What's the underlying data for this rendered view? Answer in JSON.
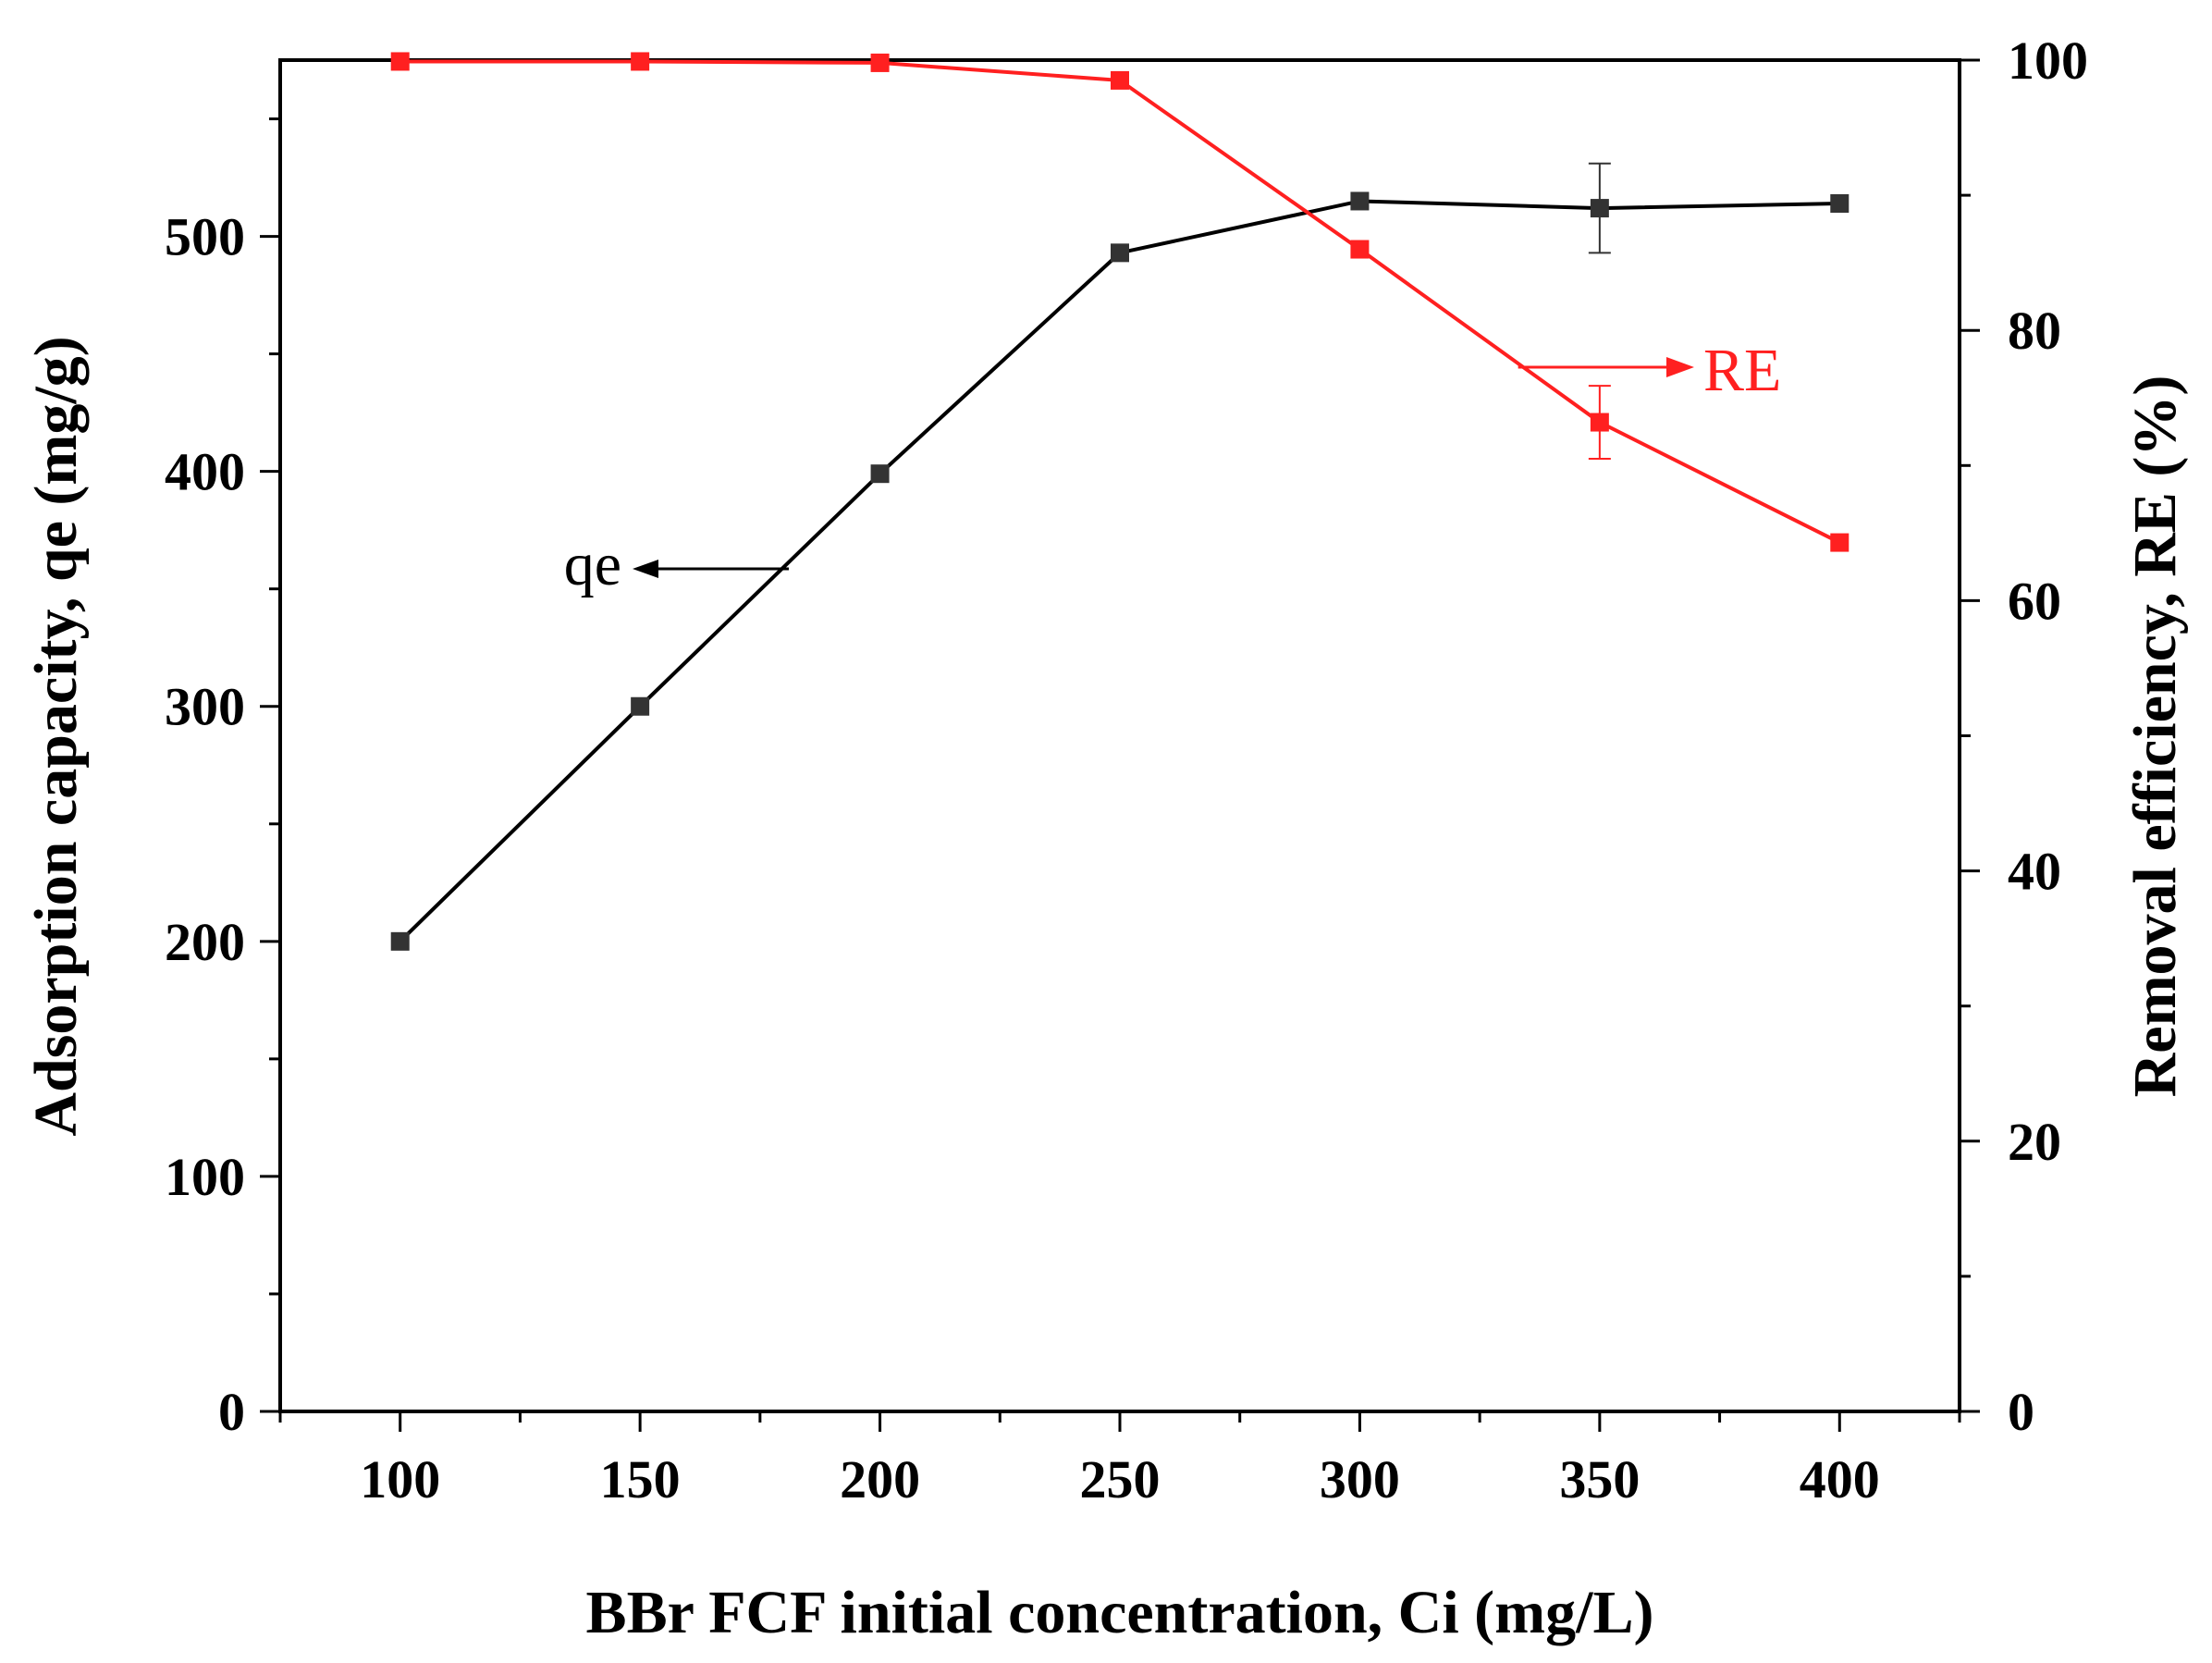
{
  "chart_data": {
    "type": "line",
    "xlabel": "BBr FCF initial concentration, Ci (mg/L)",
    "ylabel_left": "Adsorption capacity, qe (mg/g)",
    "ylabel_right": "Removal efficiency, RE (%)",
    "xlim": [
      75,
      425
    ],
    "ylim_left": [
      0,
      575
    ],
    "ylim_right": [
      0,
      100
    ],
    "x_ticks": [
      100,
      150,
      200,
      250,
      300,
      350,
      400
    ],
    "y_ticks_left": [
      0,
      100,
      200,
      300,
      400,
      500
    ],
    "y_ticks_right": [
      0,
      20,
      40,
      60,
      80,
      100
    ],
    "grid": false,
    "series": [
      {
        "name": "qe",
        "axis": "left",
        "color": "#000000",
        "marker_color": "#333333",
        "x": [
          100,
          150,
          200,
          250,
          300,
          350,
          400
        ],
        "values": [
          200,
          300,
          399,
          493,
          515,
          512,
          514
        ],
        "errors": [
          0,
          0,
          0,
          0,
          0,
          19,
          0
        ]
      },
      {
        "name": "RE",
        "axis": "right",
        "color": "#ff2020",
        "marker_color": "#ff2020",
        "x": [
          100,
          150,
          200,
          250,
          300,
          350,
          400
        ],
        "values": [
          99.9,
          99.9,
          99.8,
          98.5,
          86,
          73.2,
          64.3
        ],
        "errors": [
          0,
          0,
          0,
          0,
          0,
          2.7,
          0
        ]
      }
    ],
    "annotations": [
      {
        "text": "qe",
        "series": "qe",
        "arrow": "left"
      },
      {
        "text": "RE",
        "series": "RE",
        "arrow": "right"
      }
    ]
  }
}
